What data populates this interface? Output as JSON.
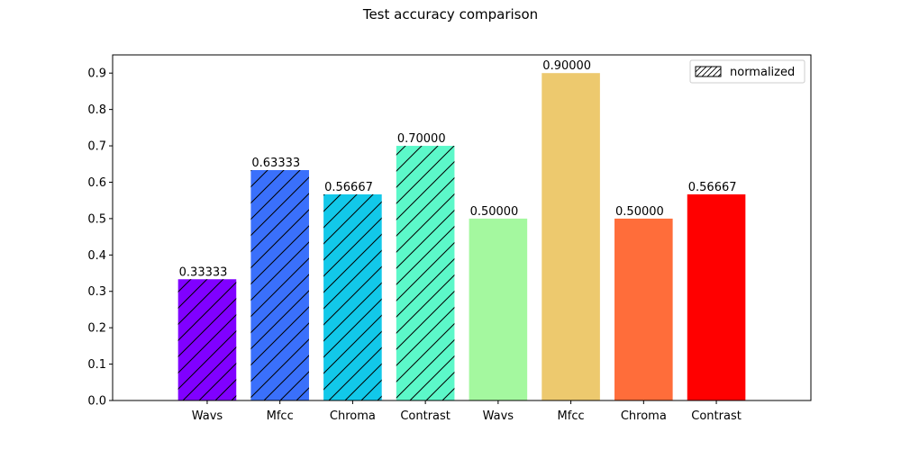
{
  "chart_data": {
    "type": "bar",
    "title": "Test accuracy comparison",
    "xlabel": "",
    "ylabel": "",
    "ylim": [
      0,
      0.95
    ],
    "yticks": [
      "0.0",
      "0.1",
      "0.2",
      "0.3",
      "0.4",
      "0.5",
      "0.6",
      "0.7",
      "0.8",
      "0.9"
    ],
    "categories": [
      "Wavs",
      "Mfcc",
      "Chroma",
      "Contrast",
      "Wavs",
      "Mfcc",
      "Chroma",
      "Contrast"
    ],
    "values": [
      0.33333,
      0.63333,
      0.56667,
      0.7,
      0.5,
      0.9,
      0.5,
      0.56667
    ],
    "value_labels": [
      "0.33333",
      "0.63333",
      "0.56667",
      "0.70000",
      "0.50000",
      "0.90000",
      "0.50000",
      "0.56667"
    ],
    "colors": [
      "#8000ff",
      "#3a70fb",
      "#12c8e9",
      "#5cf8c9",
      "#a4f89f",
      "#edc96e",
      "#ff6d3a",
      "#ff0000"
    ],
    "hatched": [
      true,
      true,
      true,
      true,
      false,
      false,
      false,
      false
    ],
    "legend": {
      "entries": [
        "normalized"
      ],
      "placement": "top-right"
    },
    "grid": false
  }
}
